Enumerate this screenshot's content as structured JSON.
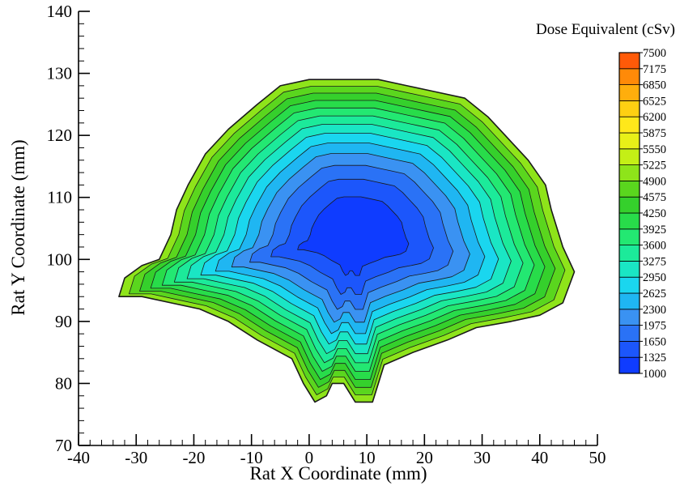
{
  "chart_data": {
    "type": "heatmap",
    "subtype": "filled-contour",
    "title": "",
    "xlabel": "Rat X Coordinate (mm)",
    "ylabel": "Rat Y Coordinate (mm)",
    "xlim": [
      -40,
      50
    ],
    "ylim": [
      70,
      140
    ],
    "xticks": [
      -40,
      -30,
      -20,
      -10,
      0,
      10,
      20,
      30,
      40,
      50
    ],
    "yticks": [
      70,
      80,
      90,
      100,
      110,
      120,
      130,
      140
    ],
    "x_minor_step": 2,
    "y_minor_step": 2,
    "grid": false,
    "legend": {
      "title": "Dose Equivalent (cSv)",
      "placement": "right",
      "levels": [
        1000,
        1325,
        1650,
        1975,
        2300,
        2625,
        2950,
        3275,
        3600,
        3925,
        4250,
        4575,
        4900,
        5225,
        5550,
        5875,
        6200,
        6525,
        6850,
        7175,
        7500
      ],
      "colors": [
        "#0f3cff",
        "#1c56fb",
        "#2a72f6",
        "#3a92f2",
        "#1fb6f2",
        "#1ad6ef",
        "#1ae6c4",
        "#1cea9a",
        "#23e872",
        "#28dc4a",
        "#35d02c",
        "#5ad61e",
        "#8ee41a",
        "#c4ef16",
        "#e8f018",
        "#ffe81a",
        "#ffd012",
        "#ffae0c",
        "#ff8a08",
        "#ff5a08",
        "#ff3010"
      ]
    },
    "region": {
      "description": "dorsal-ventral cross-section outline of rat body",
      "outline": [
        [
          -33,
          94
        ],
        [
          -32,
          97
        ],
        [
          -29,
          99
        ],
        [
          -26,
          100
        ],
        [
          -24,
          104
        ],
        [
          -23,
          108
        ],
        [
          -21,
          112
        ],
        [
          -18,
          117
        ],
        [
          -14,
          121
        ],
        [
          -9,
          125
        ],
        [
          -5,
          128
        ],
        [
          0,
          129
        ],
        [
          5,
          129
        ],
        [
          12,
          129
        ],
        [
          17,
          128
        ],
        [
          22,
          127
        ],
        [
          27,
          126
        ],
        [
          31,
          123
        ],
        [
          34,
          120
        ],
        [
          38,
          116
        ],
        [
          41,
          112
        ],
        [
          42,
          108
        ],
        [
          44,
          102
        ],
        [
          46,
          98
        ],
        [
          44,
          93
        ],
        [
          40,
          91
        ],
        [
          35,
          90
        ],
        [
          29,
          89
        ],
        [
          24,
          87
        ],
        [
          18,
          85
        ],
        [
          13,
          83
        ],
        [
          12,
          80
        ],
        [
          11,
          77
        ],
        [
          8,
          77
        ],
        [
          6,
          80
        ],
        [
          4,
          80
        ],
        [
          3,
          78
        ],
        [
          1,
          77
        ],
        [
          -1,
          80
        ],
        [
          -3,
          84
        ],
        [
          -9,
          87
        ],
        [
          -14,
          90
        ],
        [
          -19,
          92
        ],
        [
          -24,
          93
        ],
        [
          -29,
          94
        ]
      ],
      "center": [
        8,
        104
      ],
      "max_dose_at_outline": 4600,
      "min_dose_at_center": 1000,
      "contour_interval": 325
    }
  }
}
